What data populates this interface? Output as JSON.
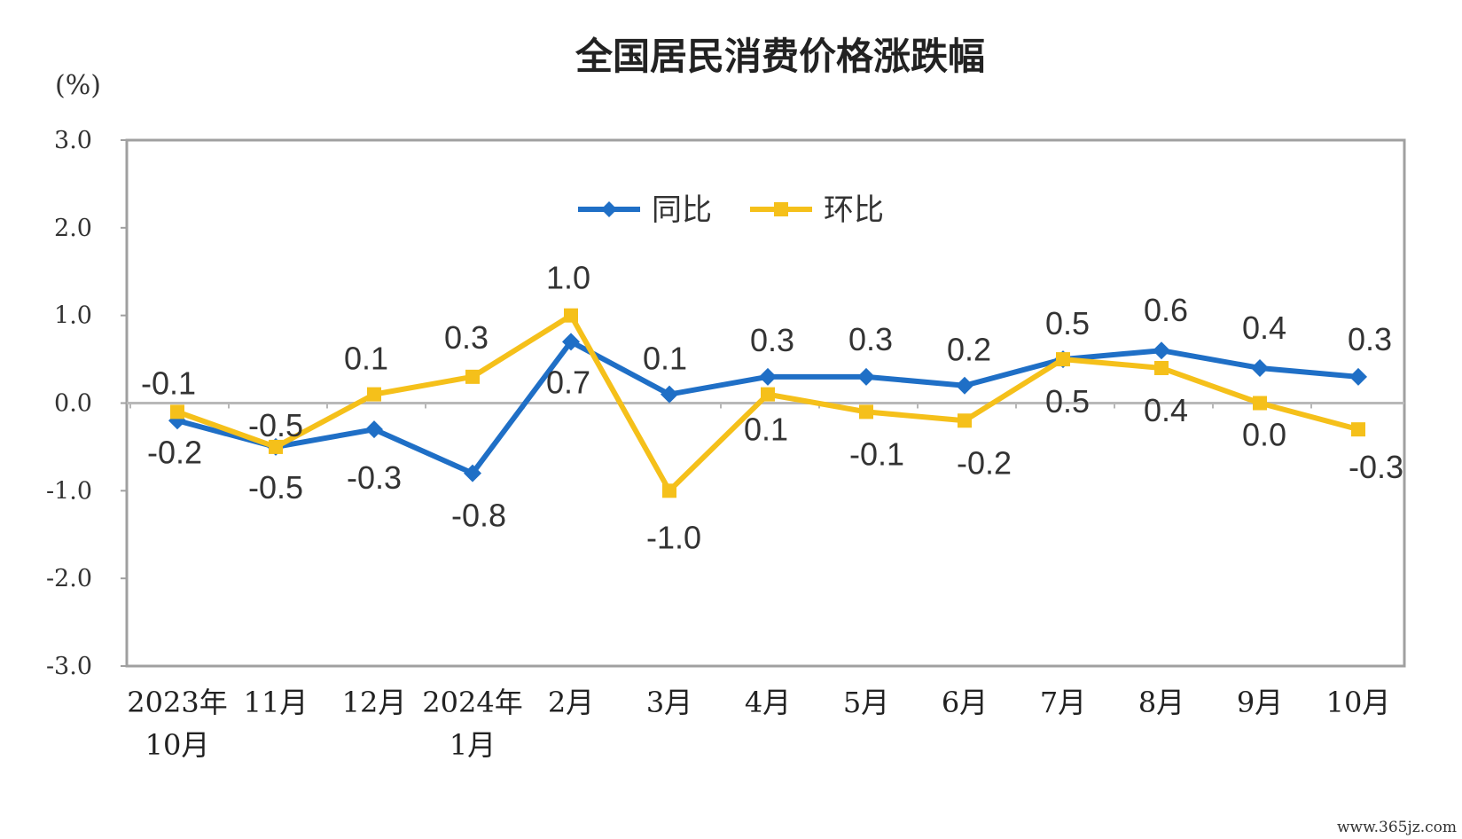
{
  "chart_data": {
    "type": "line",
    "title": "全国居民消费价格涨跌幅",
    "unit_label": "(%)",
    "ylim": [
      -3.0,
      3.0
    ],
    "yticks": [
      "3.0",
      "2.0",
      "1.0",
      "0.0",
      "-1.0",
      "-2.0",
      "-3.0"
    ],
    "categories": [
      [
        "2023年",
        "10月"
      ],
      [
        "11月"
      ],
      [
        "12月"
      ],
      [
        "2024年",
        "1月"
      ],
      [
        "2月"
      ],
      [
        "3月"
      ],
      [
        "4月"
      ],
      [
        "5月"
      ],
      [
        "6月"
      ],
      [
        "7月"
      ],
      [
        "8月"
      ],
      [
        "9月"
      ],
      [
        "10月"
      ]
    ],
    "series": [
      {
        "name": "同比",
        "color": "#1f6fc6",
        "marker": "diamond",
        "values": [
          -0.2,
          -0.5,
          -0.3,
          -0.8,
          0.7,
          0.1,
          0.3,
          0.3,
          0.2,
          0.5,
          0.6,
          0.4,
          0.3
        ],
        "labels": [
          "-0.2",
          "-0.5",
          "-0.3",
          "-0.8",
          "0.7",
          "0.1",
          "0.3",
          "0.3",
          "0.2",
          "0.5",
          "0.6",
          "0.4",
          "0.3"
        ]
      },
      {
        "name": "环比",
        "color": "#f5c01a",
        "marker": "square",
        "values": [
          -0.1,
          -0.5,
          0.1,
          0.3,
          1.0,
          -1.0,
          0.1,
          -0.1,
          -0.2,
          0.5,
          0.4,
          0.0,
          -0.3
        ],
        "labels": [
          "-0.1",
          "-0.5",
          "0.1",
          "0.3",
          "1.0",
          "-1.0",
          "0.1",
          "-0.1",
          "-0.2",
          "0.5",
          "0.4",
          "0.0",
          "-0.3"
        ]
      }
    ],
    "legend": "top-center",
    "grid": false
  },
  "watermark": "www.365jz.com"
}
